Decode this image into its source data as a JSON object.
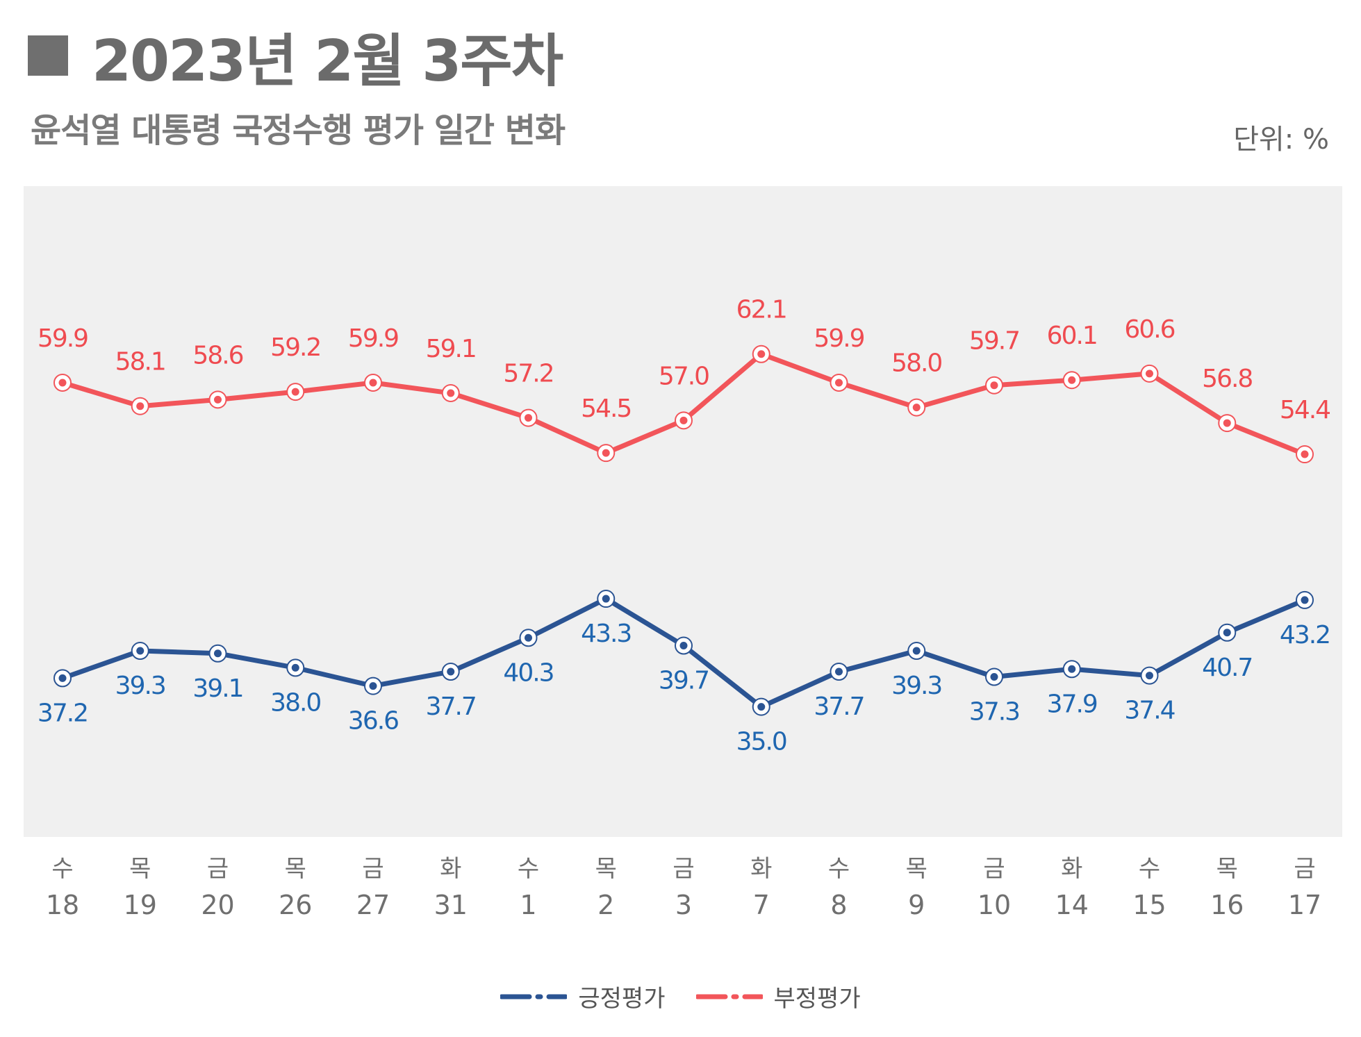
{
  "header": {
    "title": "2023년 2월 3주차",
    "subtitle": "윤석열 대통령 국정수행 평가 일간 변화",
    "unit": "단위: %"
  },
  "colors": {
    "positive": "#2b5493",
    "positive_label": "#1f66b0",
    "negative": "#f2555a",
    "negative_label": "#ef4b50",
    "plot_bg": "#f0f0f0",
    "axis_text": "#6f6f6f"
  },
  "chart_data": {
    "type": "line",
    "title": "윤석열 대통령 국정수행 평가 일간 변화",
    "unit": "%",
    "ylim": [
      25,
      75
    ],
    "categories": [
      {
        "day": "수",
        "date": "18"
      },
      {
        "day": "목",
        "date": "19"
      },
      {
        "day": "금",
        "date": "20"
      },
      {
        "day": "목",
        "date": "26"
      },
      {
        "day": "금",
        "date": "27"
      },
      {
        "day": "화",
        "date": "31"
      },
      {
        "day": "수",
        "date": "1"
      },
      {
        "day": "목",
        "date": "2"
      },
      {
        "day": "금",
        "date": "3"
      },
      {
        "day": "화",
        "date": "7"
      },
      {
        "day": "수",
        "date": "8"
      },
      {
        "day": "목",
        "date": "9"
      },
      {
        "day": "금",
        "date": "10"
      },
      {
        "day": "화",
        "date": "14"
      },
      {
        "day": "수",
        "date": "15"
      },
      {
        "day": "목",
        "date": "16"
      },
      {
        "day": "금",
        "date": "17"
      }
    ],
    "series": [
      {
        "name": "긍정평가",
        "key": "positive",
        "values": [
          37.2,
          39.3,
          39.1,
          38.0,
          36.6,
          37.7,
          40.3,
          43.3,
          39.7,
          35.0,
          37.7,
          39.3,
          37.3,
          37.9,
          37.4,
          40.7,
          43.2
        ]
      },
      {
        "name": "부정평가",
        "key": "negative",
        "values": [
          59.9,
          58.1,
          58.6,
          59.2,
          59.9,
          59.1,
          57.2,
          54.5,
          57.0,
          62.1,
          59.9,
          58.0,
          59.7,
          60.1,
          60.6,
          56.8,
          54.4
        ]
      }
    ],
    "legend": [
      "긍정평가",
      "부정평가"
    ],
    "legend_position": "bottom-center",
    "grid": false
  }
}
